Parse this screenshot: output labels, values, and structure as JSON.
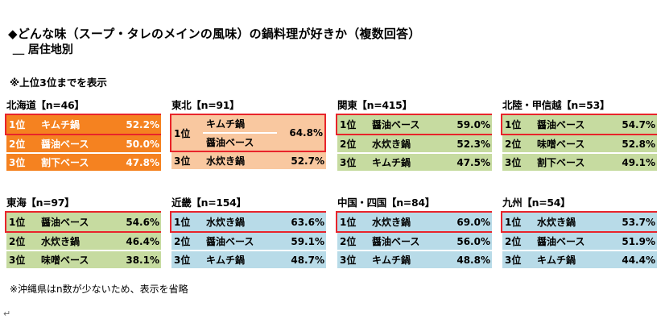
{
  "title": "◆どんな味（スープ・タレのメインの風味）の鍋料理が好きか（複数回答）",
  "subtitle": "＿ 居住地別",
  "note_top": "※上位3位までを表示",
  "note_bottom": "※沖縄県はn数が少ないため、表示を省略",
  "return_mark": "↵",
  "regions": {
    "hokkaido": {
      "title": "北海道【n=46】",
      "rows": [
        {
          "rank": "1位",
          "name": "キムチ鍋",
          "value": "52.2%"
        },
        {
          "rank": "2位",
          "name": "醤油ベース",
          "value": "50.0%"
        },
        {
          "rank": "3位",
          "name": "割下ベース",
          "value": "47.8%"
        }
      ]
    },
    "tohoku": {
      "title": "東北【n=91】",
      "tie": {
        "rank": "1位",
        "name1": "キムチ鍋",
        "name2": "醤油ベース",
        "value": "64.8%"
      },
      "rows": [
        {
          "rank": "3位",
          "name": "水炊き鍋",
          "value": "52.7%"
        }
      ]
    },
    "kanto": {
      "title": "関東【n=415】",
      "rows": [
        {
          "rank": "1位",
          "name": "醤油ベース",
          "value": "59.0%"
        },
        {
          "rank": "2位",
          "name": "水炊き鍋",
          "value": "52.3%"
        },
        {
          "rank": "3位",
          "name": "キムチ鍋",
          "value": "47.5%"
        }
      ]
    },
    "hokuriku": {
      "title": "北陸・甲信越【n=53】",
      "rows": [
        {
          "rank": "1位",
          "name": "醤油ベース",
          "value": "54.7%"
        },
        {
          "rank": "2位",
          "name": "味噌ベース",
          "value": "52.8%"
        },
        {
          "rank": "3位",
          "name": "割下ベース",
          "value": "49.1%"
        }
      ]
    },
    "tokai": {
      "title": "東海【n=97】",
      "rows": [
        {
          "rank": "1位",
          "name": "醤油ベース",
          "value": "54.6%"
        },
        {
          "rank": "2位",
          "name": "水炊き鍋",
          "value": "46.4%"
        },
        {
          "rank": "3位",
          "name": "味噌ベース",
          "value": "38.1%"
        }
      ]
    },
    "kinki": {
      "title": "近畿【n=154】",
      "rows": [
        {
          "rank": "1位",
          "name": "水炊き鍋",
          "value": "63.6%"
        },
        {
          "rank": "2位",
          "name": "醤油ベース",
          "value": "59.1%"
        },
        {
          "rank": "3位",
          "name": "キムチ鍋",
          "value": "48.7%"
        }
      ]
    },
    "chugoku": {
      "title": "中国・四国【n=84】",
      "rows": [
        {
          "rank": "1位",
          "name": "水炊き鍋",
          "value": "69.0%"
        },
        {
          "rank": "2位",
          "name": "醤油ベース",
          "value": "56.0%"
        },
        {
          "rank": "3位",
          "name": "キムチ鍋",
          "value": "48.8%"
        }
      ]
    },
    "kyushu": {
      "title": "九州【n=54】",
      "rows": [
        {
          "rank": "1位",
          "name": "水炊き鍋",
          "value": "53.7%"
        },
        {
          "rank": "2位",
          "name": "醤油ベース",
          "value": "51.9%"
        },
        {
          "rank": "3位",
          "name": "キムチ鍋",
          "value": "44.4%"
        }
      ]
    }
  },
  "colors": {
    "orange": "#f58220",
    "peach": "#f9c8a0",
    "green": "#c6dba0",
    "blue": "#b8dbe8",
    "highlight_border": "#e8242b"
  }
}
